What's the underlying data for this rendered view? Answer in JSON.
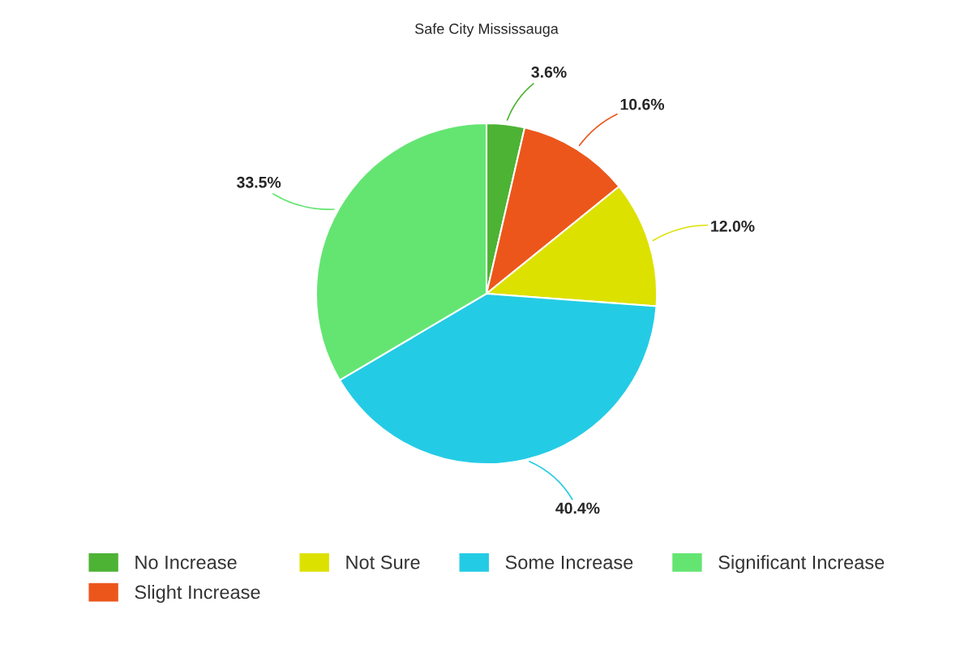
{
  "chart_data": {
    "type": "pie",
    "title": "Safe City Mississauga",
    "categories": [
      "No Increase",
      "Slight Increase",
      "Not Sure",
      "Some Increase",
      "Significant Increase"
    ],
    "values": [
      3.6,
      10.6,
      12.0,
      40.4,
      33.5
    ],
    "colors": [
      "#4db334",
      "#ec561b",
      "#dde100",
      "#24cbe5",
      "#64e572"
    ],
    "value_labels": [
      "3.6%",
      "10.6%",
      "12.0%",
      "40.4%",
      "33.5%"
    ],
    "legend": "bottom"
  }
}
